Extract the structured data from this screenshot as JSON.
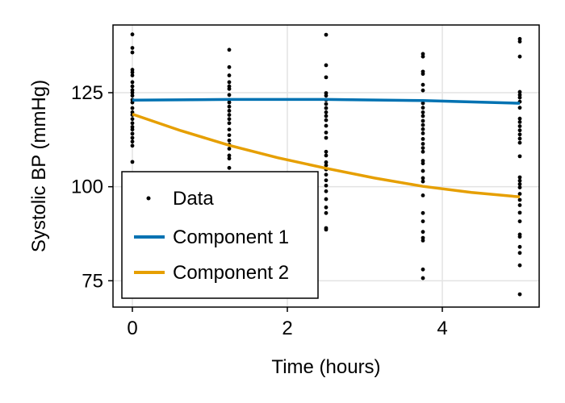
{
  "chart_data": {
    "type": "scatter",
    "title": "",
    "xlabel": "Time (hours)",
    "ylabel": "Systolic BP (mmHg)",
    "xlim": [
      -0.25,
      5.25
    ],
    "ylim": [
      68,
      143
    ],
    "xticks": [
      0,
      2,
      4
    ],
    "yticks": [
      75,
      100,
      125
    ],
    "grid": true,
    "legend_placement": "bottom-left",
    "series": [
      {
        "name": "Data",
        "kind": "scatter",
        "color": "#000000",
        "points": [
          [
            0,
            140.5
          ],
          [
            0,
            136.9
          ],
          [
            0,
            135.7
          ],
          [
            0,
            131.1
          ],
          [
            0,
            130.4
          ],
          [
            0,
            129.6
          ],
          [
            0,
            127.8
          ],
          [
            0,
            126.7
          ],
          [
            0,
            125.7
          ],
          [
            0,
            125
          ],
          [
            0,
            124.2
          ],
          [
            0,
            123.1
          ],
          [
            0,
            122.4
          ],
          [
            0,
            120.9
          ],
          [
            0,
            119.8
          ],
          [
            0,
            119.1
          ],
          [
            0,
            118
          ],
          [
            0,
            116.9
          ],
          [
            0,
            115.9
          ],
          [
            0,
            115.2
          ],
          [
            0,
            114.1
          ],
          [
            0,
            113
          ],
          [
            0,
            112
          ],
          [
            0,
            110.9
          ],
          [
            0,
            106.6
          ],
          [
            1.25,
            136.4
          ],
          [
            1.25,
            131.8
          ],
          [
            1.25,
            129.6
          ],
          [
            1.25,
            127.8
          ],
          [
            1.25,
            126.7
          ],
          [
            1.25,
            126
          ],
          [
            1.25,
            124.4
          ],
          [
            1.25,
            123.1
          ],
          [
            1.25,
            122.4
          ],
          [
            1.25,
            121.3
          ],
          [
            1.25,
            120.2
          ],
          [
            1.25,
            119.1
          ],
          [
            1.25,
            118
          ],
          [
            1.25,
            116.9
          ],
          [
            1.25,
            115.2
          ],
          [
            1.25,
            113.7
          ],
          [
            1.25,
            112.3
          ],
          [
            1.25,
            111.2
          ],
          [
            1.25,
            110.1
          ],
          [
            1.25,
            108.3
          ],
          [
            1.25,
            107.5
          ],
          [
            1.25,
            105
          ],
          [
            2.5,
            140.4
          ],
          [
            2.5,
            132.3
          ],
          [
            2.5,
            129.1
          ],
          [
            2.5,
            124.9
          ],
          [
            2.5,
            124.2
          ],
          [
            2.5,
            123.1
          ],
          [
            2.5,
            122
          ],
          [
            2.5,
            120.9
          ],
          [
            2.5,
            119.8
          ],
          [
            2.5,
            118.8
          ],
          [
            2.5,
            117.7
          ],
          [
            2.5,
            116.2
          ],
          [
            2.5,
            114.4
          ],
          [
            2.5,
            113
          ],
          [
            2.5,
            109.3
          ],
          [
            2.5,
            108.3
          ],
          [
            2.5,
            106.5
          ],
          [
            2.5,
            105.7
          ],
          [
            2.5,
            104.6
          ],
          [
            2.5,
            103.2
          ],
          [
            2.5,
            101.7
          ],
          [
            2.5,
            100.3
          ],
          [
            2.5,
            98.8
          ],
          [
            2.5,
            96.7
          ],
          [
            2.5,
            94.5
          ],
          [
            2.5,
            93
          ],
          [
            2.5,
            89
          ],
          [
            2.5,
            88.6
          ],
          [
            3.75,
            135.3
          ],
          [
            3.75,
            134.6
          ],
          [
            3.75,
            130.6
          ],
          [
            3.75,
            130
          ],
          [
            3.75,
            127.1
          ],
          [
            3.75,
            125.6
          ],
          [
            3.75,
            122.2
          ],
          [
            3.75,
            121
          ],
          [
            3.75,
            119.8
          ],
          [
            3.75,
            118.8
          ],
          [
            3.75,
            117.5
          ],
          [
            3.75,
            116.4
          ],
          [
            3.75,
            115.3
          ],
          [
            3.75,
            114.2
          ],
          [
            3.75,
            112.7
          ],
          [
            3.75,
            111.4
          ],
          [
            3.75,
            110.3
          ],
          [
            3.75,
            109.3
          ],
          [
            3.75,
            106.9
          ],
          [
            3.75,
            106.2
          ],
          [
            3.75,
            104.2
          ],
          [
            3.75,
            102.3
          ],
          [
            3.75,
            101.4
          ],
          [
            3.75,
            97.7
          ],
          [
            3.75,
            93
          ],
          [
            3.75,
            90.8
          ],
          [
            3.75,
            88
          ],
          [
            3.75,
            86.4
          ],
          [
            3.75,
            85.7
          ],
          [
            3.75,
            78
          ],
          [
            3.75,
            75.7
          ],
          [
            5,
            139.3
          ],
          [
            5,
            138.6
          ],
          [
            5,
            134.6
          ],
          [
            5,
            125.2
          ],
          [
            5,
            124.4
          ],
          [
            5,
            123.7
          ],
          [
            5,
            122.6
          ],
          [
            5,
            121
          ],
          [
            5,
            118.1
          ],
          [
            5,
            117.2
          ],
          [
            5,
            116.1
          ],
          [
            5,
            115
          ],
          [
            5,
            113.9
          ],
          [
            5,
            112.8
          ],
          [
            5,
            111.7
          ],
          [
            5,
            108.1
          ],
          [
            5,
            102.5
          ],
          [
            5,
            101.6
          ],
          [
            5,
            100.7
          ],
          [
            5,
            99.8
          ],
          [
            5,
            98.1
          ],
          [
            5,
            96.5
          ],
          [
            5,
            95.1
          ],
          [
            5,
            93.1
          ],
          [
            5,
            90.8
          ],
          [
            5,
            87.3
          ],
          [
            5,
            86.7
          ],
          [
            5,
            84
          ],
          [
            5,
            82.4
          ],
          [
            5,
            79.1
          ],
          [
            5,
            71.4
          ]
        ]
      },
      {
        "name": "Component 1",
        "kind": "line",
        "color": "#0072B2",
        "x": [
          0,
          1.25,
          2.5,
          3.75,
          5
        ],
        "y": [
          123.0,
          123.2,
          123.2,
          122.9,
          122.2
        ]
      },
      {
        "name": "Component 2",
        "kind": "line",
        "color": "#E69F00",
        "x": [
          0,
          0.625,
          1.25,
          1.875,
          2.5,
          3.125,
          3.75,
          4.375,
          5
        ],
        "y": [
          119.3,
          114.9,
          111.0,
          107.7,
          104.9,
          102.3,
          100.1,
          98.5,
          97.3
        ]
      }
    ]
  }
}
